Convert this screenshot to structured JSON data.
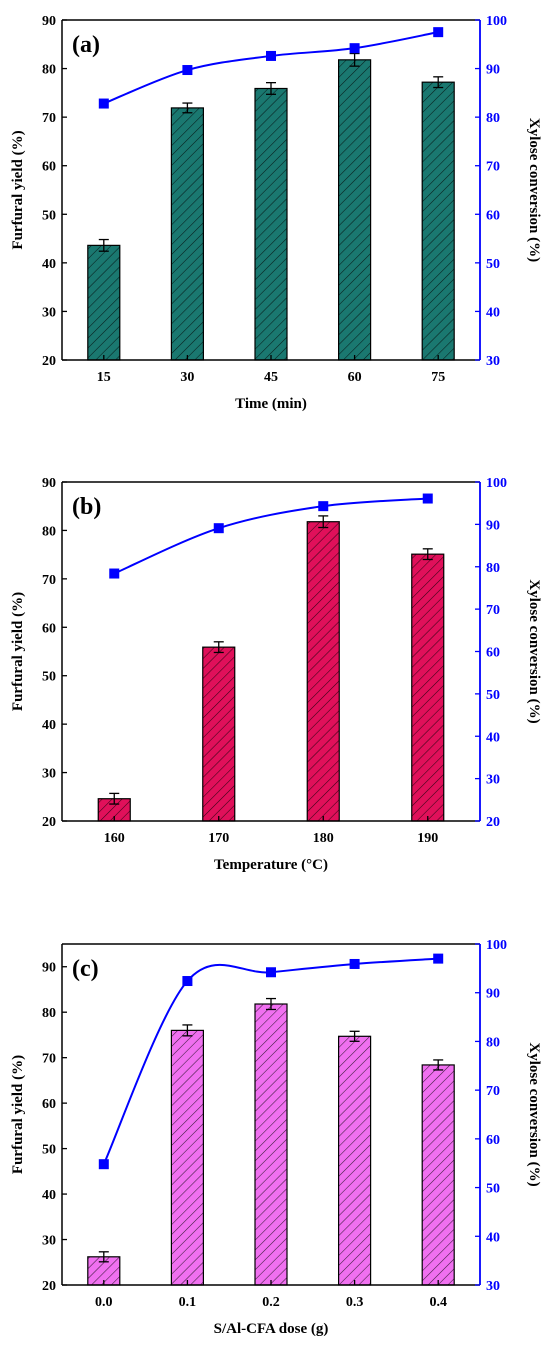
{
  "chart_data": [
    {
      "panel_label": "(a)",
      "type": "bar",
      "xlabel": "Time (min)",
      "ylabel": "Furfural yield (%)",
      "y2label": "Xylose conversion (%)",
      "categories": [
        "15",
        "30",
        "45",
        "60",
        "75"
      ],
      "ylim": [
        20,
        90
      ],
      "y2lim": [
        30,
        100
      ],
      "yticks": [
        20,
        30,
        40,
        50,
        60,
        70,
        80,
        90
      ],
      "y2ticks": [
        30,
        40,
        50,
        60,
        70,
        80,
        90,
        100
      ],
      "series": [
        {
          "values": [
            43.6,
            71.9,
            75.9,
            81.8,
            77.2
          ],
          "errors": [
            1.2,
            1.0,
            1.2,
            1.3,
            1.1
          ],
          "kind": "bar",
          "axis": "left"
        },
        {
          "values": [
            82.8,
            89.7,
            92.6,
            94.2,
            97.5
          ],
          "kind": "line",
          "axis": "right"
        }
      ],
      "colors": {
        "bar": "#1a7870",
        "line": "#0000ff",
        "right_axis": "#0000ff"
      }
    },
    {
      "panel_label": "(b)",
      "type": "bar",
      "xlabel": "Temperature (°C)",
      "ylabel": "Furfural yield (%)",
      "y2label": "Xylose conversion (%)",
      "categories": [
        "160",
        "170",
        "180",
        "190"
      ],
      "ylim": [
        20,
        90
      ],
      "y2lim": [
        20,
        100
      ],
      "yticks": [
        20,
        30,
        40,
        50,
        60,
        70,
        80,
        90
      ],
      "y2ticks": [
        20,
        30,
        40,
        50,
        60,
        70,
        80,
        90,
        100
      ],
      "series": [
        {
          "values": [
            24.6,
            55.9,
            81.8,
            75.1
          ],
          "errors": [
            1.1,
            1.1,
            1.2,
            1.1
          ],
          "kind": "bar",
          "axis": "left"
        },
        {
          "values": [
            78.4,
            89.1,
            94.3,
            96.1
          ],
          "kind": "line",
          "axis": "right"
        }
      ],
      "colors": {
        "bar": "#e0105a",
        "line": "#0000ff",
        "right_axis": "#0000ff"
      }
    },
    {
      "panel_label": "(c)",
      "type": "bar",
      "xlabel": "S/Al-CFA dose (g)",
      "ylabel": "Furfural yield (%)",
      "y2label": "Xylose conversion (%)",
      "categories": [
        "0.0",
        "0.1",
        "0.2",
        "0.3",
        "0.4"
      ],
      "ylim": [
        20,
        95
      ],
      "y2lim": [
        30,
        100
      ],
      "yticks": [
        20,
        30,
        40,
        50,
        60,
        70,
        80,
        90
      ],
      "y2ticks": [
        30,
        40,
        50,
        60,
        70,
        80,
        90,
        100
      ],
      "series": [
        {
          "values": [
            26.2,
            76.0,
            81.8,
            74.7,
            68.4
          ],
          "errors": [
            1.1,
            1.2,
            1.2,
            1.1,
            1.1
          ],
          "kind": "bar",
          "axis": "left"
        },
        {
          "values": [
            54.8,
            92.4,
            94.2,
            95.9,
            97.0
          ],
          "kind": "line",
          "axis": "right"
        }
      ],
      "colors": {
        "bar": "#f070f0",
        "line": "#0000ff",
        "right_axis": "#0000ff"
      }
    }
  ]
}
